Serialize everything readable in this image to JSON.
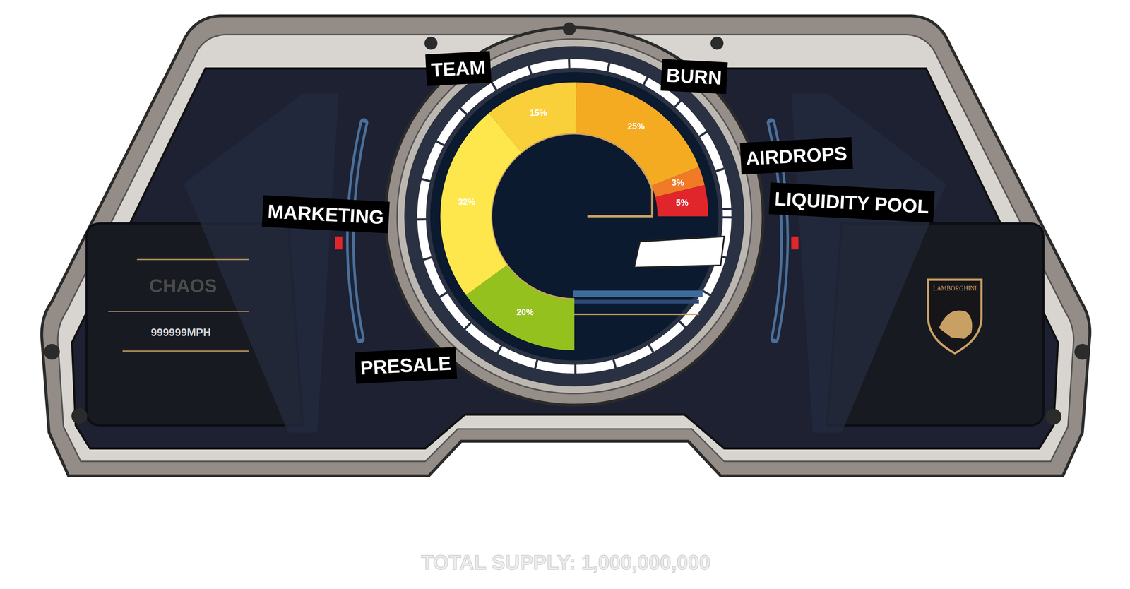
{
  "chart_data": {
    "type": "gauge",
    "categories": [
      "PRESALE",
      "MARKETING",
      "TEAM",
      "BURN",
      "AIRDROPS",
      "LIQUIDITY POOL"
    ],
    "values": [
      20,
      32,
      15,
      25,
      3,
      5
    ],
    "value_labels": [
      "20%",
      "32%",
      "15%",
      "25%",
      "3%",
      "5%"
    ],
    "colors": [
      "#95c11f",
      "#fde74c",
      "#f9d03a",
      "#f5ab21",
      "#f07a26",
      "#e0262a"
    ],
    "data_labels": true,
    "tick_labels": false
  },
  "dashboard": {
    "name": "CHAOS",
    "speed": "999999MPH",
    "badge": "LAMBORGHINI",
    "footer": "TOTAL SUPPLY: 1,000,000,000"
  }
}
